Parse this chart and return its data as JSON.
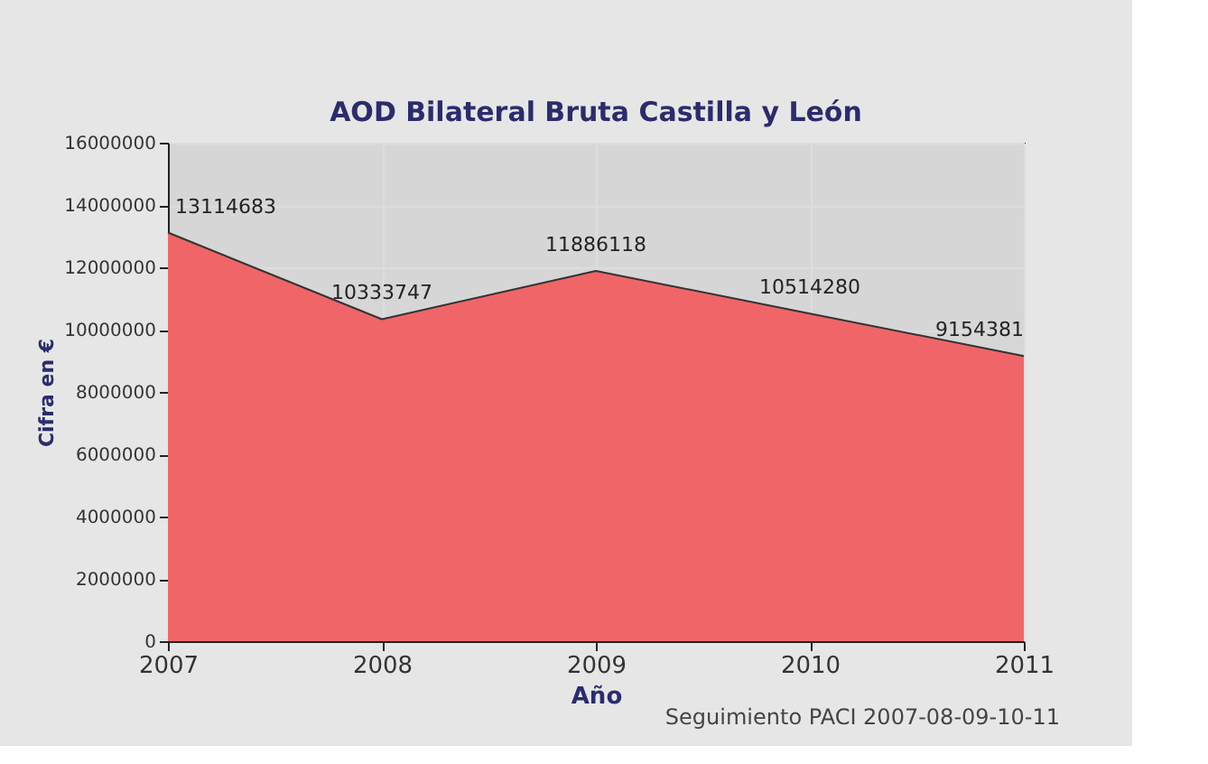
{
  "chart_data": {
    "type": "area",
    "title": "AOD Bilateral Bruta Castilla y León",
    "xlabel": "Año",
    "ylabel": "Cifra en €",
    "x": [
      2007,
      2008,
      2009,
      2010,
      2011
    ],
    "series": [
      {
        "color": "#f06668",
        "values": [
          13114683,
          10333747,
          11886118,
          10514280,
          9154381
        ]
      }
    ],
    "xlim": [
      2007,
      2011
    ],
    "xticks": [
      2007,
      2008,
      2009,
      2010,
      2011
    ],
    "ylim": [
      0,
      16000000
    ],
    "yticks": [
      0,
      2000000,
      4000000,
      6000000,
      8000000,
      10000000,
      12000000,
      14000000,
      16000000
    ],
    "grid": true,
    "data_labels": true,
    "annotations": [
      "Seguimiento PACI 2007-08-09-10-11"
    ]
  }
}
